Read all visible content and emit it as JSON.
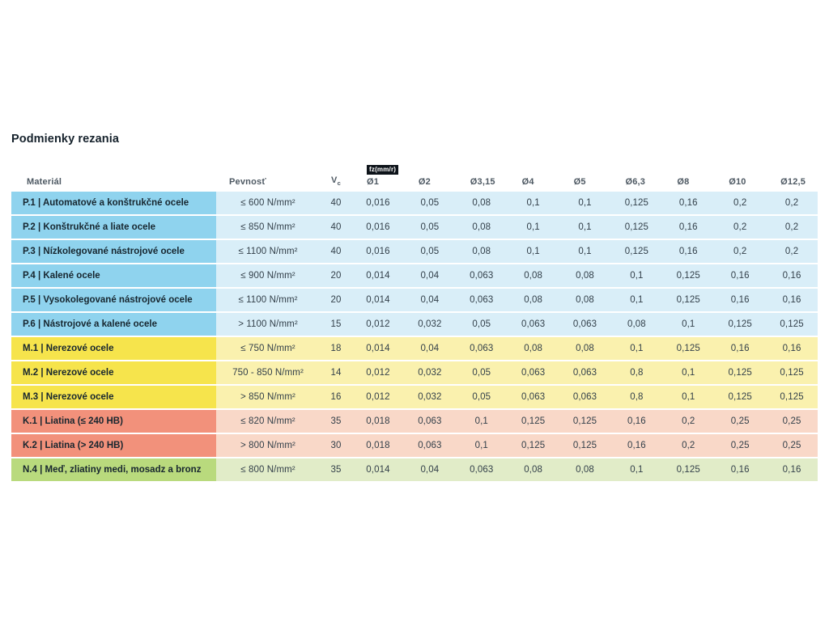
{
  "title": "Podmienky rezania",
  "table": {
    "headers": {
      "material": "Materiál",
      "strength": "Pevnosť",
      "vc_base": "V",
      "vc_sub": "c",
      "fz_badge": "fz(mm/r)",
      "diameters": [
        "Ø1",
        "Ø2",
        "Ø3,15",
        "Ø4",
        "Ø5",
        "Ø6,3",
        "Ø8",
        "Ø10",
        "Ø12,5"
      ]
    },
    "colors": {
      "blue_dark": "#8fd3ee",
      "blue_light": "#d9eef8",
      "yellow_dark": "#f6e44c",
      "yellow_light": "#faf1ae",
      "salmon_dark": "#f2917b",
      "salmon_light": "#f9d8c8",
      "green_dark": "#b9da7d",
      "green_light": "#e1ecc8"
    },
    "rows": [
      {
        "material": "P.1 | Automatové a konštrukčné ocele",
        "strength": "≤ 600 N/mm²",
        "vc": "40",
        "fz": [
          "0,016",
          "0,05",
          "0,08",
          "0,1",
          "0,1",
          "0,125",
          "0,16",
          "0,2",
          "0,2"
        ],
        "color": "blue"
      },
      {
        "material": "P.2 | Konštrukčné a liate ocele",
        "strength": "≤ 850 N/mm²",
        "vc": "40",
        "fz": [
          "0,016",
          "0,05",
          "0,08",
          "0,1",
          "0,1",
          "0,125",
          "0,16",
          "0,2",
          "0,2"
        ],
        "color": "blue"
      },
      {
        "material": "P.3 | Nízkolegované nástrojové ocele",
        "strength": "≤ 1100 N/mm²",
        "vc": "40",
        "fz": [
          "0,016",
          "0,05",
          "0,08",
          "0,1",
          "0,1",
          "0,125",
          "0,16",
          "0,2",
          "0,2"
        ],
        "color": "blue"
      },
      {
        "material": "P.4 | Kalené ocele",
        "strength": "≤ 900 N/mm²",
        "vc": "20",
        "fz": [
          "0,014",
          "0,04",
          "0,063",
          "0,08",
          "0,08",
          "0,1",
          "0,125",
          "0,16",
          "0,16"
        ],
        "color": "blue"
      },
      {
        "material": "P.5 | Vysokolegované nástrojové ocele",
        "strength": "≤ 1100 N/mm²",
        "vc": "20",
        "fz": [
          "0,014",
          "0,04",
          "0,063",
          "0,08",
          "0,08",
          "0,1",
          "0,125",
          "0,16",
          "0,16"
        ],
        "color": "blue"
      },
      {
        "material": "P.6 | Nástrojové a kalené ocele",
        "strength": "> 1100 N/mm²",
        "vc": "15",
        "fz": [
          "0,012",
          "0,032",
          "0,05",
          "0,063",
          "0,063",
          "0,08",
          "0,1",
          "0,125",
          "0,125"
        ],
        "color": "blue"
      },
      {
        "material": "M.1 | Nerezové ocele",
        "strength": "≤ 750 N/mm²",
        "vc": "18",
        "fz": [
          "0,014",
          "0,04",
          "0,063",
          "0,08",
          "0,08",
          "0,1",
          "0,125",
          "0,16",
          "0,16"
        ],
        "color": "yellow"
      },
      {
        "material": "M.2 | Nerezové ocele",
        "strength": "750 - 850 N/mm²",
        "vc": "14",
        "fz": [
          "0,012",
          "0,032",
          "0,05",
          "0,063",
          "0,063",
          "0,8",
          "0,1",
          "0,125",
          "0,125"
        ],
        "color": "yellow"
      },
      {
        "material": "M.3 | Nerezové ocele",
        "strength": "> 850 N/mm²",
        "vc": "16",
        "fz": [
          "0,012",
          "0,032",
          "0,05",
          "0,063",
          "0,063",
          "0,8",
          "0,1",
          "0,125",
          "0,125"
        ],
        "color": "yellow"
      },
      {
        "material": "K.1 | Liatina (≤ 240 HB)",
        "strength": "≤ 820 N/mm²",
        "vc": "35",
        "fz": [
          "0,018",
          "0,063",
          "0,1",
          "0,125",
          "0,125",
          "0,16",
          "0,2",
          "0,25",
          "0,25"
        ],
        "color": "salmon"
      },
      {
        "material": "K.2 | Liatina (> 240 HB)",
        "strength": "> 800 N/mm²",
        "vc": "30",
        "fz": [
          "0,018",
          "0,063",
          "0,1",
          "0,125",
          "0,125",
          "0,16",
          "0,2",
          "0,25",
          "0,25"
        ],
        "color": "salmon"
      },
      {
        "material": "N.4 | Meď, zliatiny medi, mosadz a bronz",
        "strength": "≤ 800 N/mm²",
        "vc": "35",
        "fz": [
          "0,014",
          "0,04",
          "0,063",
          "0,08",
          "0,08",
          "0,1",
          "0,125",
          "0,16",
          "0,16"
        ],
        "color": "green"
      }
    ]
  }
}
